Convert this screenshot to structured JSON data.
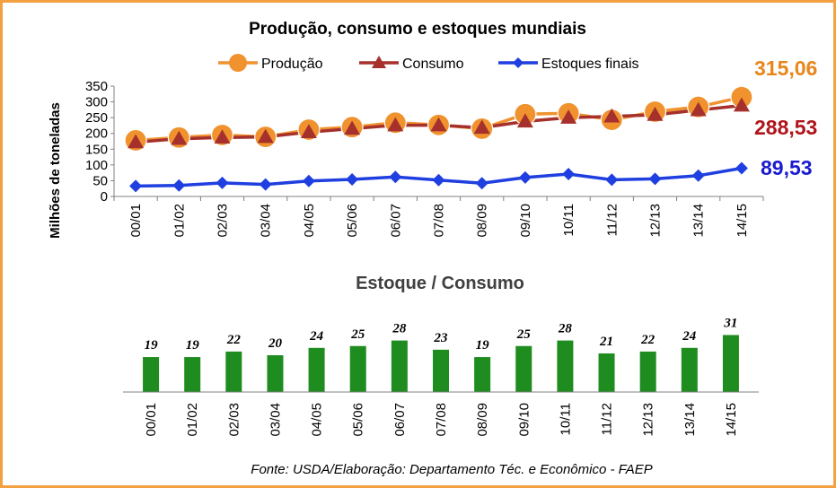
{
  "chart_data": [
    {
      "type": "line",
      "title": "Produção, consumo e estoques mundiais",
      "ylabel": "Milhões de toneladas",
      "ylim": [
        0,
        350
      ],
      "yticks": [
        0,
        50,
        100,
        150,
        200,
        250,
        300,
        350
      ],
      "categories": [
        "00/01",
        "01/02",
        "02/03",
        "03/04",
        "04/05",
        "05/06",
        "06/07",
        "07/08",
        "08/09",
        "09/10",
        "10/11",
        "11/12",
        "12/13",
        "13/14",
        "14/15"
      ],
      "legend_position": "top",
      "series": [
        {
          "name": "Produção",
          "color": "#f0922e",
          "marker": "circle",
          "values": [
            178,
            187,
            195,
            189,
            212,
            220,
            234,
            227,
            215,
            261,
            264,
            243,
            269,
            284,
            315.06
          ],
          "end_label": "315,06"
        },
        {
          "name": "Consumo",
          "color": "#a6302c",
          "marker": "triangle",
          "values": [
            172,
            183,
            187,
            189,
            204,
            215,
            226,
            226,
            218,
            238,
            250,
            254,
            259,
            274,
            288.53
          ],
          "end_label": "288,53"
        },
        {
          "name": "Estoques finais",
          "color": "#1f3fe0",
          "marker": "diamond",
          "values": [
            33,
            35,
            43,
            38,
            49,
            54,
            62,
            52,
            42,
            60,
            71,
            53,
            56,
            66,
            89.53
          ],
          "end_label": "89,53"
        }
      ],
      "end_label_colors": [
        "#e8861a",
        "#b0141a",
        "#1a1ad0"
      ]
    },
    {
      "type": "bar",
      "title": "Estoque / Consumo",
      "categories": [
        "00/01",
        "01/02",
        "02/03",
        "03/04",
        "04/05",
        "05/06",
        "06/07",
        "07/08",
        "08/09",
        "09/10",
        "10/11",
        "11/12",
        "12/13",
        "13/14",
        "14/15"
      ],
      "values": [
        19,
        19,
        22,
        20,
        24,
        25,
        28,
        23,
        19,
        25,
        28,
        21,
        22,
        24,
        31
      ],
      "bar_color": "#1e8c1e"
    }
  ],
  "source": "Fonte: USDA/Elaboração: Departamento Téc. e Econômico - FAEP"
}
